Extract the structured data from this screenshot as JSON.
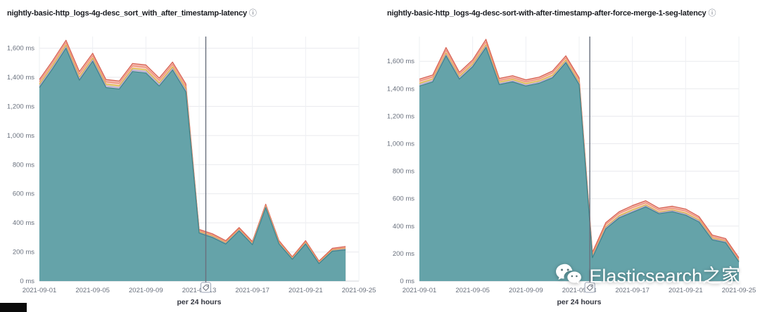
{
  "watermark": {
    "text": "Elasticsearch之家",
    "icon": "wechat-icon"
  },
  "chart_data": [
    {
      "type": "area",
      "title": "nightly-basic-http_logs-4g-desc_sort_with_after_timestamp-latency",
      "info_icon": "ⓘ",
      "xlabel": "per 24 hours",
      "ylim": [
        0,
        1680
      ],
      "grid": true,
      "legend": "none",
      "x": [
        "2021-09-01",
        "2021-09-02",
        "2021-09-03",
        "2021-09-04",
        "2021-09-05",
        "2021-09-06",
        "2021-09-07",
        "2021-09-08",
        "2021-09-09",
        "2021-09-10",
        "2021-09-11",
        "2021-09-12",
        "2021-09-13",
        "2021-09-14",
        "2021-09-15",
        "2021-09-16",
        "2021-09-17",
        "2021-09-18",
        "2021-09-19",
        "2021-09-20",
        "2021-09-21",
        "2021-09-22",
        "2021-09-23",
        "2021-09-24",
        "2021-09-25"
      ],
      "x_tick_labels": [
        "2021-09-01",
        "2021-09-05",
        "2021-09-09",
        "2021-09-13",
        "2021-09-17",
        "2021-09-21",
        "2021-09-25"
      ],
      "y_tick_labels": [
        "0 ms",
        "200 ms",
        "400 ms",
        "600 ms",
        "800 ms",
        "1,000 ms",
        "1,200 ms",
        "1,400 ms",
        "1,600 ms"
      ],
      "annotation": {
        "type": "vertical-line",
        "x_index": 12.5,
        "icon": "tag"
      },
      "series": [
        {
          "name": "band-red",
          "stroke": "#d65f50",
          "fill": "#f2b6ad",
          "values": [
            1385,
            1515,
            1655,
            1440,
            1565,
            1385,
            1375,
            1495,
            1485,
            1395,
            1505,
            1355,
            355,
            325,
            278,
            368,
            272,
            528,
            278,
            168,
            278,
            138,
            225,
            238,
            null
          ]
        },
        {
          "name": "band-orange",
          "stroke": "#ef9077",
          "fill": "#f8cfc0",
          "values": [
            1368,
            1498,
            1638,
            1420,
            1548,
            1368,
            1358,
            1478,
            1468,
            1378,
            1488,
            1338,
            346,
            316,
            270,
            360,
            264,
            520,
            270,
            161,
            270,
            131,
            217,
            230,
            null
          ]
        },
        {
          "name": "band-yellow",
          "stroke": "#d8b83e",
          "fill": "#efe4ae",
          "values": [
            1352,
            1482,
            1622,
            1402,
            1532,
            1352,
            1342,
            1462,
            1452,
            1362,
            1472,
            1322,
            339,
            309,
            263,
            353,
            258,
            513,
            263,
            156,
            263,
            126,
            212,
            224,
            null
          ]
        },
        {
          "name": "band-lavender",
          "stroke": "#b2a1ce",
          "fill": "#d6cbe6",
          "values": [
            1341,
            1471,
            1611,
            1391,
            1521,
            1341,
            1331,
            1451,
            1441,
            1351,
            1461,
            1311,
            334,
            304,
            259,
            349,
            254,
            509,
            259,
            153,
            259,
            123,
            208,
            220,
            null
          ]
        },
        {
          "name": "main-area-teal",
          "stroke": "#3f8489",
          "fill": "#5d9fa4",
          "values": [
            1330,
            1460,
            1600,
            1380,
            1510,
            1330,
            1320,
            1440,
            1430,
            1340,
            1450,
            1300,
            330,
            300,
            255,
            345,
            250,
            505,
            255,
            150,
            255,
            120,
            205,
            215,
            null
          ]
        }
      ]
    },
    {
      "type": "area",
      "title": "nightly-basic-http_logs-4g-desc-sort-with-after-timestamp-after-force-merge-1-seg-latency",
      "info_icon": "ⓘ",
      "xlabel": "per 24 hours",
      "ylim": [
        0,
        1780
      ],
      "grid": true,
      "legend": "none",
      "x": [
        "2021-09-01",
        "2021-09-02",
        "2021-09-03",
        "2021-09-04",
        "2021-09-05",
        "2021-09-06",
        "2021-09-07",
        "2021-09-08",
        "2021-09-09",
        "2021-09-10",
        "2021-09-11",
        "2021-09-12",
        "2021-09-13",
        "2021-09-14",
        "2021-09-15",
        "2021-09-16",
        "2021-09-17",
        "2021-09-18",
        "2021-09-19",
        "2021-09-20",
        "2021-09-21",
        "2021-09-22",
        "2021-09-23",
        "2021-09-24",
        "2021-09-25"
      ],
      "x_tick_labels": [
        "2021-09-01",
        "2021-09-05",
        "2021-09-09",
        "2021-09-13",
        "2021-09-17",
        "2021-09-21",
        "2021-09-25"
      ],
      "y_tick_labels": [
        "0 ms",
        "200 ms",
        "400 ms",
        "600 ms",
        "800 ms",
        "1,000 ms",
        "1,200 ms",
        "1,400 ms",
        "1,600 ms"
      ],
      "annotation": {
        "type": "vertical-line",
        "x_index": 12.8,
        "icon": "tag"
      },
      "series": [
        {
          "name": "band-red",
          "stroke": "#d65f50",
          "fill": "#f2b6ad",
          "values": [
            1470,
            1500,
            1700,
            1520,
            1610,
            1760,
            1475,
            1495,
            1465,
            1485,
            1530,
            1640,
            1480,
            210,
            425,
            505,
            550,
            585,
            530,
            545,
            525,
            470,
            335,
            310,
            170
          ]
        },
        {
          "name": "band-orange",
          "stroke": "#ef9077",
          "fill": "#f8cfc0",
          "values": [
            1455,
            1485,
            1680,
            1505,
            1595,
            1740,
            1460,
            1480,
            1450,
            1470,
            1515,
            1625,
            1465,
            195,
            412,
            492,
            535,
            570,
            516,
            530,
            510,
            458,
            322,
            298,
            158
          ]
        },
        {
          "name": "band-yellow",
          "stroke": "#d8b83e",
          "fill": "#efe4ae",
          "values": [
            1440,
            1470,
            1660,
            1490,
            1580,
            1720,
            1448,
            1468,
            1438,
            1458,
            1498,
            1608,
            1448,
            182,
            395,
            475,
            518,
            555,
            502,
            518,
            495,
            445,
            312,
            290,
            148
          ]
        },
        {
          "name": "band-lavender",
          "stroke": "#b2a1ce",
          "fill": "#d6cbe6",
          "values": [
            1430,
            1460,
            1650,
            1480,
            1570,
            1710,
            1438,
            1458,
            1428,
            1448,
            1488,
            1598,
            1438,
            176,
            388,
            468,
            508,
            548,
            496,
            512,
            488,
            438,
            306,
            286,
            144
          ]
        },
        {
          "name": "main-area-teal",
          "stroke": "#3f8489",
          "fill": "#5d9fa4",
          "values": [
            1420,
            1450,
            1640,
            1470,
            1560,
            1700,
            1430,
            1450,
            1420,
            1440,
            1480,
            1590,
            1430,
            170,
            380,
            460,
            500,
            540,
            490,
            505,
            480,
            430,
            300,
            280,
            140
          ]
        }
      ]
    }
  ]
}
